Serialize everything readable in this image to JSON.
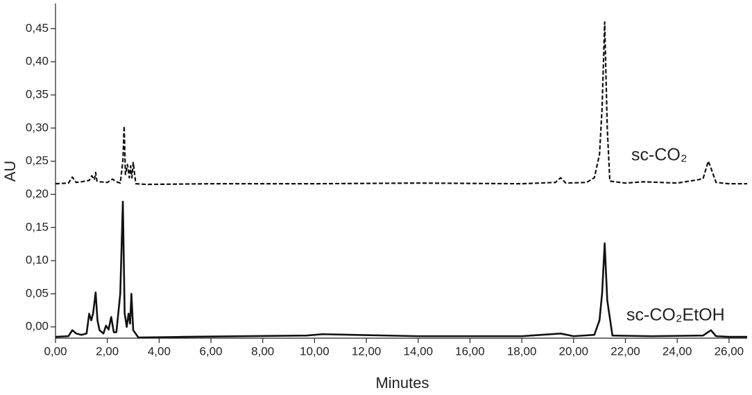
{
  "chart_data": {
    "type": "line",
    "xlabel": "Minutes",
    "ylabel": "AU",
    "xlim": [
      0,
      26.7
    ],
    "ylim": [
      -0.017,
      0.488
    ],
    "xticks": [
      {
        "value": 0,
        "label": "0,00"
      },
      {
        "value": 2,
        "label": "2,00"
      },
      {
        "value": 4,
        "label": "4,00"
      },
      {
        "value": 6,
        "label": "6,00"
      },
      {
        "value": 8,
        "label": "8,00"
      },
      {
        "value": 10,
        "label": "10,00"
      },
      {
        "value": 12,
        "label": "12,00"
      },
      {
        "value": 14,
        "label": "14,00"
      },
      {
        "value": 16,
        "label": "16,00"
      },
      {
        "value": 18,
        "label": "18,00"
      },
      {
        "value": 20,
        "label": "20,00"
      },
      {
        "value": 22,
        "label": "22,00"
      },
      {
        "value": 24,
        "label": "24,00"
      },
      {
        "value": 26,
        "label": "26,00"
      }
    ],
    "yticks": [
      {
        "value": 0,
        "label": "0,00"
      },
      {
        "value": 0.05,
        "label": "0,05"
      },
      {
        "value": 0.1,
        "label": "0,10"
      },
      {
        "value": 0.15,
        "label": "0,15"
      },
      {
        "value": 0.2,
        "label": "0,20"
      },
      {
        "value": 0.25,
        "label": "0,25"
      },
      {
        "value": 0.3,
        "label": "0,30"
      },
      {
        "value": 0.35,
        "label": "0,35"
      },
      {
        "value": 0.4,
        "label": "0,40"
      },
      {
        "value": 0.45,
        "label": "0,45"
      }
    ],
    "series": [
      {
        "name": "sc-CO₂",
        "color": "#111111",
        "dashed": true,
        "x": [
          0,
          0.5,
          0.65,
          0.8,
          1.0,
          1.3,
          1.4,
          1.5,
          1.55,
          1.6,
          1.7,
          2.0,
          2.2,
          2.35,
          2.5,
          2.6,
          2.65,
          2.7,
          2.78,
          2.85,
          2.9,
          2.95,
          3.0,
          3.1,
          3.5,
          6,
          10,
          14,
          18,
          19.3,
          19.5,
          19.7,
          20.5,
          20.8,
          21.0,
          21.1,
          21.2,
          21.3,
          21.4,
          22,
          22.7,
          24,
          24.8,
          25.0,
          25.2,
          25.3,
          25.5,
          26,
          26.7
        ],
        "values": [
          0.216,
          0.217,
          0.226,
          0.218,
          0.219,
          0.221,
          0.228,
          0.222,
          0.233,
          0.22,
          0.219,
          0.218,
          0.223,
          0.219,
          0.217,
          0.25,
          0.303,
          0.23,
          0.245,
          0.225,
          0.243,
          0.225,
          0.248,
          0.216,
          0.215,
          0.216,
          0.216,
          0.217,
          0.216,
          0.218,
          0.225,
          0.217,
          0.218,
          0.225,
          0.26,
          0.33,
          0.46,
          0.3,
          0.22,
          0.217,
          0.219,
          0.217,
          0.222,
          0.224,
          0.25,
          0.24,
          0.218,
          0.216,
          0.216
        ]
      },
      {
        "name": "sc-CO₂EtOH",
        "color": "#111111",
        "dashed": false,
        "x": [
          0,
          0.5,
          0.65,
          0.8,
          1.0,
          1.2,
          1.3,
          1.38,
          1.45,
          1.55,
          1.62,
          1.7,
          1.85,
          1.95,
          2.05,
          2.15,
          2.25,
          2.35,
          2.5,
          2.6,
          2.67,
          2.75,
          2.82,
          2.88,
          2.93,
          3.0,
          3.2,
          5,
          9.7,
          10.3,
          14,
          18,
          19.5,
          20,
          20.8,
          21.0,
          21.1,
          21.2,
          21.3,
          21.5,
          23,
          25,
          25.3,
          25.5,
          26,
          26.7
        ],
        "values": [
          -0.015,
          -0.014,
          -0.005,
          -0.01,
          -0.012,
          -0.01,
          0.02,
          0.01,
          0.02,
          0.052,
          0.01,
          -0.005,
          -0.01,
          0.002,
          -0.004,
          0.015,
          -0.008,
          -0.008,
          0.05,
          0.189,
          0.02,
          0.0,
          0.02,
          0.005,
          0.05,
          -0.005,
          -0.016,
          -0.015,
          -0.013,
          -0.011,
          -0.014,
          -0.014,
          -0.01,
          -0.014,
          -0.012,
          0.01,
          0.05,
          0.126,
          0.04,
          -0.013,
          -0.014,
          -0.013,
          -0.005,
          -0.014,
          -0.015,
          -0.015
        ]
      }
    ]
  }
}
